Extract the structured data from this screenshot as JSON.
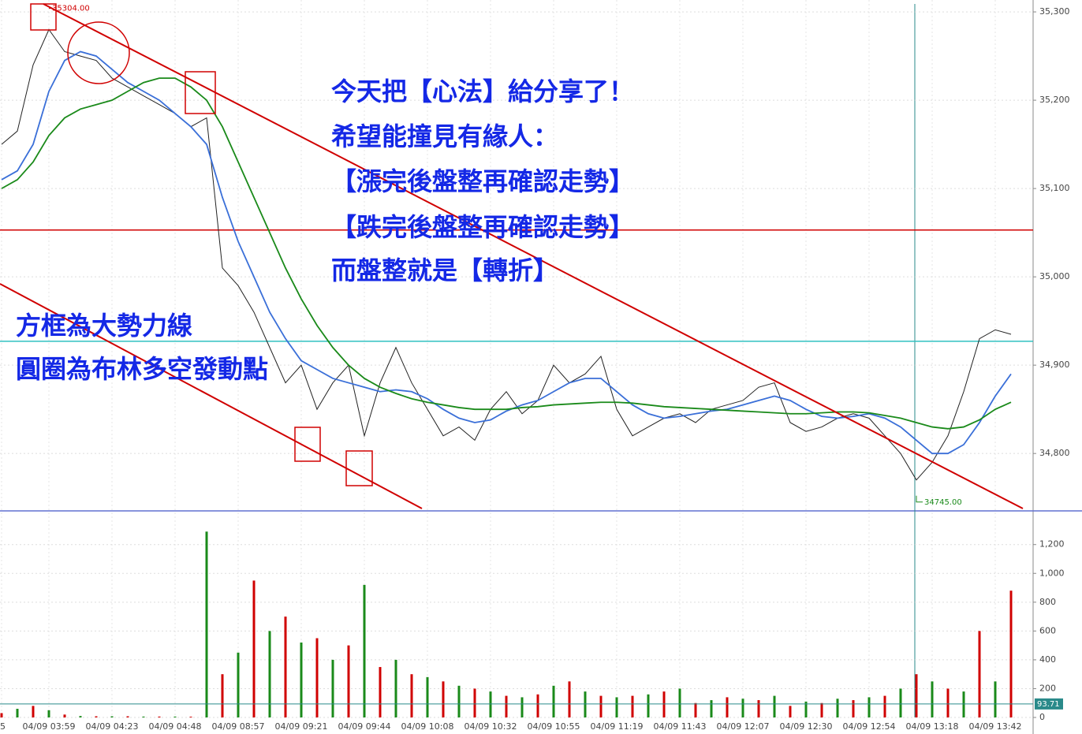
{
  "annotation": {
    "main_lines": [
      "今天把【心法】給分享了！",
      "希望能撞見有緣人：",
      "【漲完後盤整再確認走勢】",
      "【跌完後盤整再確認走勢】",
      "而盤整就是【轉折】"
    ],
    "side_lines": [
      "方框為大勢力線",
      "圓圈為布林多空發動點"
    ]
  },
  "chart_data": [
    {
      "type": "line",
      "categories": [
        "5",
        null,
        null,
        "04/09 03:59",
        null,
        null,
        null,
        "04/09 04:23",
        null,
        null,
        null,
        "04/09 04:48",
        null,
        null,
        null,
        "04/09 08:57",
        null,
        null,
        null,
        "04/09 09:21",
        null,
        null,
        null,
        "04/09 09:44",
        null,
        null,
        null,
        "04/09 10:08",
        null,
        null,
        null,
        "04/09 10:32",
        null,
        null,
        null,
        "04/09 10:55",
        null,
        null,
        null,
        "04/09 11:19",
        null,
        null,
        null,
        "04/09 11:43",
        null,
        null,
        null,
        "04/09 12:07",
        null,
        null,
        null,
        "04/09 12:30",
        null,
        null,
        null,
        "04/09 12:54",
        null,
        null,
        null,
        "04/09 13:18",
        null,
        null,
        null,
        "04/09 13:42",
        null
      ],
      "series": [
        {
          "color": "#222222",
          "values": [
            35150,
            35165,
            35240,
            35280,
            35255,
            35250,
            35245,
            35225,
            35215,
            35205,
            35195,
            35185,
            35170,
            35180,
            35010,
            34990,
            34960,
            34920,
            34880,
            34900,
            34850,
            34880,
            34900,
            34820,
            34880,
            34920,
            34880,
            34850,
            34820,
            34830,
            34815,
            34850,
            34870,
            34845,
            34860,
            34900,
            34880,
            34890,
            34910,
            34850,
            34820,
            34830,
            34840,
            34845,
            34835,
            34850,
            34855,
            34860,
            34875,
            34880,
            34835,
            34825,
            34830,
            34840,
            34845,
            34840,
            34820,
            34800,
            34770,
            34790,
            34820,
            34870,
            34930,
            34940,
            34935
          ]
        },
        {
          "color": "#3a6fd8",
          "values": [
            35110,
            35120,
            35150,
            35210,
            35245,
            35255,
            35250,
            35235,
            35220,
            35210,
            35200,
            35185,
            35170,
            35150,
            35090,
            35040,
            35000,
            34960,
            34930,
            34905,
            34895,
            34885,
            34880,
            34875,
            34870,
            34872,
            34870,
            34862,
            34850,
            34840,
            34835,
            34838,
            34848,
            34855,
            34860,
            34870,
            34880,
            34885,
            34885,
            34870,
            34855,
            34845,
            34840,
            34842,
            34845,
            34848,
            34850,
            34855,
            34860,
            34865,
            34860,
            34850,
            34842,
            34840,
            34842,
            34845,
            34840,
            34830,
            34815,
            34800,
            34800,
            34810,
            34835,
            34865,
            34890
          ]
        },
        {
          "color": "#1a8a1a",
          "values": [
            35100,
            35110,
            35130,
            35160,
            35180,
            35190,
            35195,
            35200,
            35210,
            35220,
            35225,
            35225,
            35215,
            35200,
            35170,
            35130,
            35090,
            35050,
            35010,
            34975,
            34945,
            34920,
            34900,
            34885,
            34875,
            34868,
            34862,
            34858,
            34855,
            34852,
            34850,
            34850,
            34850,
            34852,
            34853,
            34855,
            34856,
            34857,
            34858,
            34858,
            34857,
            34855,
            34853,
            34852,
            34851,
            34850,
            34849,
            34848,
            34847,
            34846,
            34845,
            34845,
            34846,
            34847,
            34847,
            34846,
            34843,
            34840,
            34835,
            34830,
            34828,
            34830,
            34838,
            34850,
            34858
          ]
        }
      ],
      "ylim": [
        34735,
        35309
      ],
      "yticks": [
        {
          "value": 35300,
          "label": "35,300"
        },
        {
          "value": 35200,
          "label": "35,200"
        },
        {
          "value": 35100,
          "label": "35,100"
        },
        {
          "value": 35000,
          "label": "35,000"
        },
        {
          "value": 34900,
          "label": "34,900"
        },
        {
          "value": 34800,
          "label": "34,800"
        }
      ],
      "reference_lines": [
        {
          "value": 35053,
          "color": "#d00000"
        },
        {
          "value": 34927,
          "color": "#30c0c0"
        }
      ],
      "high": {
        "index": 3,
        "value": 35304,
        "label": "35304.00"
      },
      "low": {
        "index": 58,
        "value": 34745,
        "label": "34745.00"
      },
      "grid": true
    },
    {
      "type": "bar",
      "values": [
        30,
        60,
        80,
        50,
        20,
        10,
        8,
        8,
        8,
        6,
        6,
        6,
        5,
        1290,
        300,
        450,
        950,
        600,
        700,
        520,
        550,
        400,
        500,
        920,
        350,
        400,
        300,
        280,
        250,
        220,
        200,
        180,
        150,
        140,
        160,
        220,
        250,
        180,
        150,
        140,
        150,
        160,
        180,
        200,
        100,
        120,
        140,
        130,
        120,
        150,
        80,
        110,
        100,
        130,
        120,
        140,
        150,
        200,
        300,
        250,
        200,
        180,
        600,
        250,
        880
      ],
      "colors": [
        "#d00000",
        "#1a8a1a"
      ],
      "ylim": [
        0,
        1390
      ],
      "yticks": [
        {
          "value": 1200,
          "label": "1,200"
        },
        {
          "value": 1000,
          "label": "1,000"
        },
        800,
        600,
        400,
        200,
        0
      ],
      "current": {
        "value": 93.71,
        "color": "#2a8a8a"
      },
      "grid": true
    }
  ]
}
